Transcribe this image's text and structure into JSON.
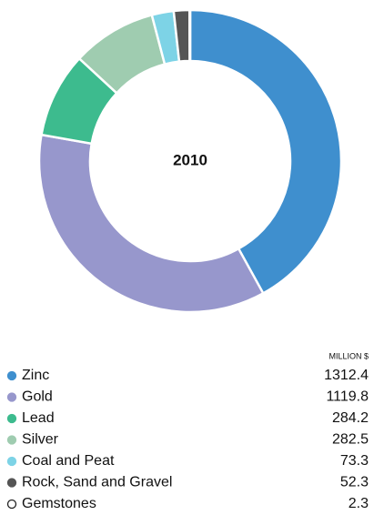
{
  "chart_data": {
    "type": "pie",
    "donut": true,
    "center_label": "2010",
    "unit_label": "MILLION $",
    "categories": [
      "Zinc",
      "Gold",
      "Lead",
      "Silver",
      "Coal and Peat",
      "Rock, Sand and Gravel",
      "Gemstones"
    ],
    "values": [
      1312.4,
      1119.8,
      284.2,
      282.5,
      73.3,
      52.3,
      2.3
    ],
    "colors": [
      "#3f8fce",
      "#9797cc",
      "#3dbb8e",
      "#9fccb0",
      "#7dd3e6",
      "#555555",
      "#ffffff"
    ]
  }
}
